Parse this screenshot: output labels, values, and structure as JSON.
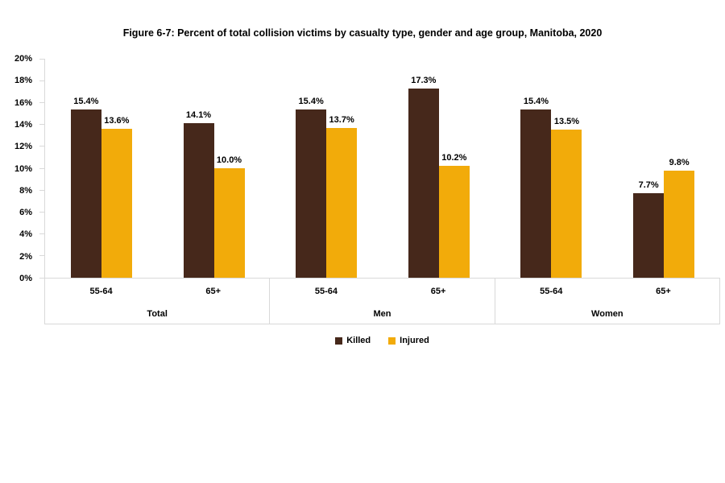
{
  "chart_data": {
    "type": "bar",
    "title": "Figure 6-7: Percent of total collision victims by casualty type, gender and age group, Manitoba, 2020",
    "ylabel": "",
    "xlabel": "",
    "axis": {
      "ymin": 0,
      "ymax": 20,
      "step": 2
    },
    "ytick_labels": [
      "0%",
      "2%",
      "4%",
      "6%",
      "8%",
      "10%",
      "12%",
      "14%",
      "16%",
      "18%",
      "20%"
    ],
    "gridlines": false,
    "legend_position": "bottom",
    "series": [
      {
        "name": "Killed",
        "color": "#46281B"
      },
      {
        "name": "Injured",
        "color": "#F2AB0A"
      }
    ],
    "groups": [
      {
        "label": "Total",
        "cells": [
          {
            "label": "55-64",
            "bars": [
              {
                "series": "Killed",
                "value": 15.4,
                "display": "15.4%"
              },
              {
                "series": "Injured",
                "value": 13.6,
                "display": "13.6%"
              }
            ]
          },
          {
            "label": "65+",
            "bars": [
              {
                "series": "Killed",
                "value": 14.1,
                "display": "14.1%"
              },
              {
                "series": "Injured",
                "value": 10.0,
                "display": "10.0%"
              }
            ]
          }
        ]
      },
      {
        "label": "Men",
        "cells": [
          {
            "label": "55-64",
            "bars": [
              {
                "series": "Killed",
                "value": 15.4,
                "display": "15.4%"
              },
              {
                "series": "Injured",
                "value": 13.7,
                "display": "13.7%"
              }
            ]
          },
          {
            "label": "65+",
            "bars": [
              {
                "series": "Killed",
                "value": 17.3,
                "display": "17.3%"
              },
              {
                "series": "Injured",
                "value": 10.2,
                "display": "10.2%"
              }
            ]
          }
        ]
      },
      {
        "label": "Women",
        "cells": [
          {
            "label": "55-64",
            "bars": [
              {
                "series": "Killed",
                "value": 15.4,
                "display": "15.4%"
              },
              {
                "series": "Injured",
                "value": 13.5,
                "display": "13.5%"
              }
            ]
          },
          {
            "label": "65+",
            "bars": [
              {
                "series": "Killed",
                "value": 7.7,
                "display": "7.7%"
              },
              {
                "series": "Injured",
                "value": 9.8,
                "display": "9.8%"
              }
            ]
          }
        ]
      }
    ]
  },
  "colors": {
    "axis_line": "#D9D9D9",
    "text": "#000000",
    "background": "#FFFFFF"
  }
}
